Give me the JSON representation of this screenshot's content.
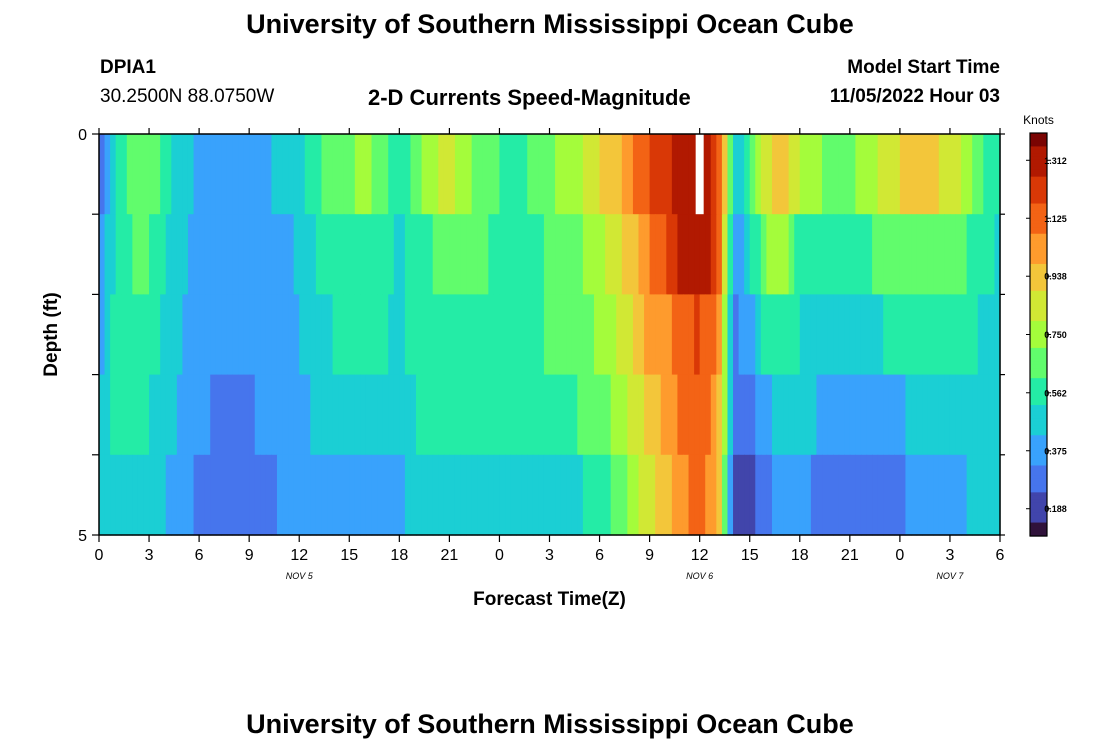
{
  "header": {
    "title": "University of Southern Mississippi Ocean Cube",
    "station": "DPIA1",
    "coords": "30.2500N  88.0750W",
    "model_start_label": "Model Start Time",
    "model_start_value": "11/05/2022 Hour 03",
    "footer_title": "University of Southern Mississippi Ocean Cube"
  },
  "colors": {
    "colormap": [
      "#30123b",
      "#4145ab",
      "#4675ed",
      "#39a2fc",
      "#1bcfd4",
      "#24eca6",
      "#61fc6c",
      "#a4fc3b",
      "#d1e834",
      "#f3c63a",
      "#fe9b2d",
      "#f36315",
      "#d93806",
      "#b11901",
      "#7a0402"
    ],
    "missing": "#ffffff"
  },
  "chart_data": {
    "type": "heatmap",
    "title": "2-D Currents Speed-Magnitude",
    "xlabel": "Forecast Time(Z)",
    "ylabel": "Depth (ft)",
    "colorbar_label": "Knots",
    "colorbar_ticks": [
      "1.312",
      "1.125",
      "0.938",
      "0.750",
      "0.562",
      "0.375",
      "0.188"
    ],
    "colorbar_range": [
      0.1,
      1.4
    ],
    "x_hours_range": [
      0,
      54
    ],
    "x_tick_labels": [
      "0",
      "3",
      "6",
      "9",
      "12",
      "15",
      "18",
      "21",
      "0",
      "3",
      "6",
      "9",
      "12",
      "15",
      "18",
      "21",
      "0",
      "3",
      "6"
    ],
    "date_labels": [
      {
        "label": "NOV 5",
        "hour": 12
      },
      {
        "label": "NOV 6",
        "hour": 36
      },
      {
        "label": "NOV 7",
        "hour": 51
      }
    ],
    "y_tick_labels": [
      "0",
      "5"
    ],
    "y_range": [
      0,
      5
    ],
    "depth_layers": 5,
    "missing_cell": {
      "hour": 36,
      "layer": 0
    },
    "speed_profiles": [
      [
        0,
        0.24,
        0.32,
        0.35,
        0.4,
        0.45
      ],
      [
        0.5,
        0.38,
        0.45,
        0.48,
        0.5,
        0.5
      ],
      [
        1,
        0.5,
        0.52,
        0.54,
        0.55,
        0.5
      ],
      [
        2,
        0.7,
        0.62,
        0.6,
        0.55,
        0.5
      ],
      [
        3,
        0.68,
        0.62,
        0.58,
        0.52,
        0.48
      ],
      [
        4,
        0.55,
        0.52,
        0.5,
        0.46,
        0.42
      ],
      [
        5,
        0.46,
        0.44,
        0.42,
        0.4,
        0.38
      ],
      [
        6,
        0.4,
        0.38,
        0.36,
        0.34,
        0.32
      ],
      [
        8,
        0.36,
        0.34,
        0.33,
        0.31,
        0.3
      ],
      [
        10,
        0.4,
        0.37,
        0.36,
        0.34,
        0.32
      ],
      [
        12,
        0.5,
        0.44,
        0.42,
        0.4,
        0.36
      ],
      [
        14,
        0.68,
        0.58,
        0.52,
        0.48,
        0.4
      ],
      [
        16,
        0.72,
        0.6,
        0.55,
        0.5,
        0.42
      ],
      [
        18,
        0.55,
        0.5,
        0.5,
        0.48,
        0.4
      ],
      [
        20,
        0.76,
        0.62,
        0.58,
        0.55,
        0.5
      ],
      [
        21,
        0.84,
        0.66,
        0.6,
        0.56,
        0.52
      ],
      [
        23,
        0.64,
        0.62,
        0.6,
        0.56,
        0.48
      ],
      [
        25,
        0.58,
        0.58,
        0.58,
        0.54,
        0.46
      ],
      [
        27,
        0.68,
        0.62,
        0.62,
        0.58,
        0.48
      ],
      [
        29,
        0.8,
        0.7,
        0.66,
        0.62,
        0.52
      ],
      [
        31,
        0.96,
        0.86,
        0.8,
        0.72,
        0.62
      ],
      [
        33,
        1.16,
        1.06,
        1.0,
        0.94,
        0.86
      ],
      [
        35,
        1.32,
        1.28,
        1.12,
        1.1,
        1.06
      ],
      [
        36,
        1.34,
        1.34,
        1.18,
        1.14,
        1.1
      ],
      [
        37,
        1.22,
        1.2,
        1.1,
        1.06,
        1.02
      ],
      [
        37.7,
        0.85,
        0.75,
        0.62,
        0.58,
        0.52
      ],
      [
        38,
        0.4,
        0.35,
        0.3,
        0.24,
        0.18
      ],
      [
        39,
        0.6,
        0.5,
        0.38,
        0.3,
        0.18
      ],
      [
        40,
        0.85,
        0.7,
        0.55,
        0.4,
        0.3
      ],
      [
        41,
        0.95,
        0.75,
        0.62,
        0.5,
        0.4
      ],
      [
        42,
        0.78,
        0.58,
        0.52,
        0.46,
        0.4
      ],
      [
        43,
        0.72,
        0.56,
        0.48,
        0.42,
        0.3
      ],
      [
        44,
        0.64,
        0.58,
        0.5,
        0.4,
        0.28
      ],
      [
        46,
        0.74,
        0.6,
        0.48,
        0.38,
        0.28
      ],
      [
        48,
        0.9,
        0.65,
        0.55,
        0.42,
        0.32
      ],
      [
        50,
        0.92,
        0.68,
        0.58,
        0.45,
        0.38
      ],
      [
        52,
        0.78,
        0.62,
        0.55,
        0.48,
        0.42
      ],
      [
        53,
        0.6,
        0.55,
        0.5,
        0.48,
        0.45
      ],
      [
        54,
        0.52,
        0.5,
        0.48,
        0.46,
        0.44
      ]
    ]
  }
}
